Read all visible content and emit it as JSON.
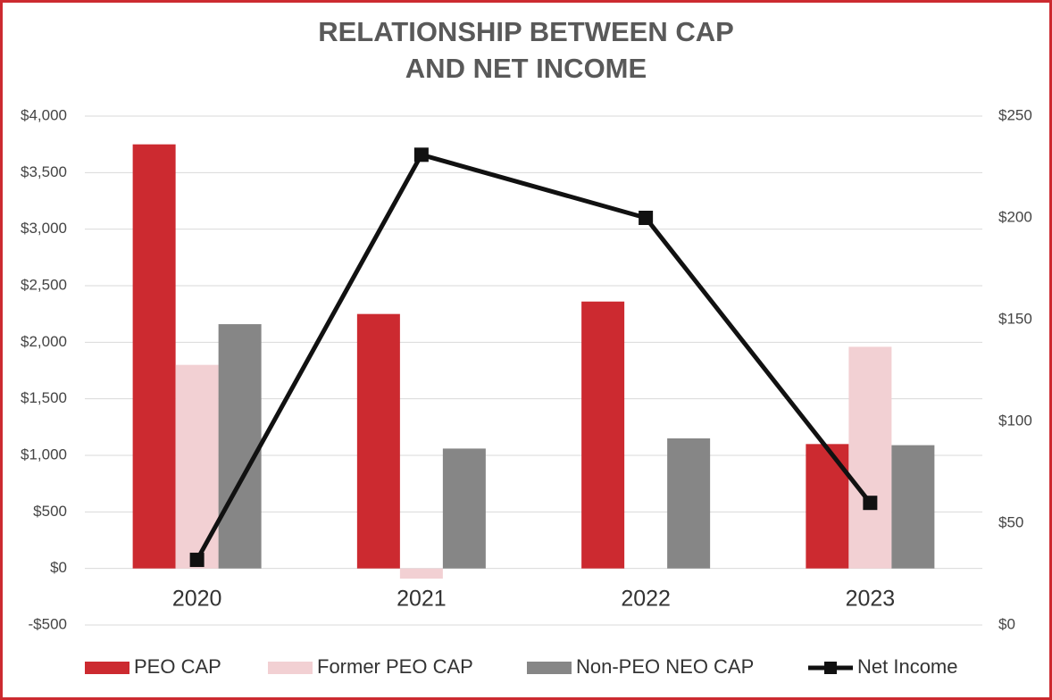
{
  "chart_data": {
    "type": "bar",
    "title": "RELATIONSHIP BETWEEN CAP",
    "title_line2": "AND NET INCOME",
    "categories": [
      "2020",
      "2021",
      "2022",
      "2023"
    ],
    "series": [
      {
        "name": "PEO CAP",
        "color": "#cc2a30",
        "values": [
          3750,
          2250,
          2360,
          1100
        ]
      },
      {
        "name": "Former PEO CAP",
        "color": "#f2d0d3",
        "values": [
          1800,
          -90,
          0,
          1960
        ]
      },
      {
        "name": "Non-PEO NEO CAP",
        "color": "#868686",
        "values": [
          2160,
          1060,
          1150,
          1090
        ]
      },
      {
        "name": "Net Income",
        "color": "#111111",
        "type": "line",
        "axis": "y2",
        "values": [
          32,
          231,
          200,
          60
        ]
      }
    ],
    "ylim": [
      -500,
      4000
    ],
    "yticks": [
      {
        "value": -500,
        "label": "-$500"
      },
      {
        "value": 0,
        "label": "$0"
      },
      {
        "value": 500,
        "label": "$500"
      },
      {
        "value": 1000,
        "label": "$1,000"
      },
      {
        "value": 1500,
        "label": "$1,500"
      },
      {
        "value": 2000,
        "label": "$2,000"
      },
      {
        "value": 2500,
        "label": "$2,500"
      },
      {
        "value": 3000,
        "label": "$3,000"
      },
      {
        "value": 3500,
        "label": "$3,500"
      },
      {
        "value": 4000,
        "label": "$4,000"
      }
    ],
    "y2lim": [
      0,
      250
    ],
    "y2ticks": [
      {
        "value": 0,
        "label": "$0"
      },
      {
        "value": 50,
        "label": "$50"
      },
      {
        "value": 100,
        "label": "$100"
      },
      {
        "value": 150,
        "label": "$150"
      },
      {
        "value": 200,
        "label": "$200"
      },
      {
        "value": 250,
        "label": "$250"
      }
    ],
    "grid": true,
    "legend": "bottom"
  }
}
